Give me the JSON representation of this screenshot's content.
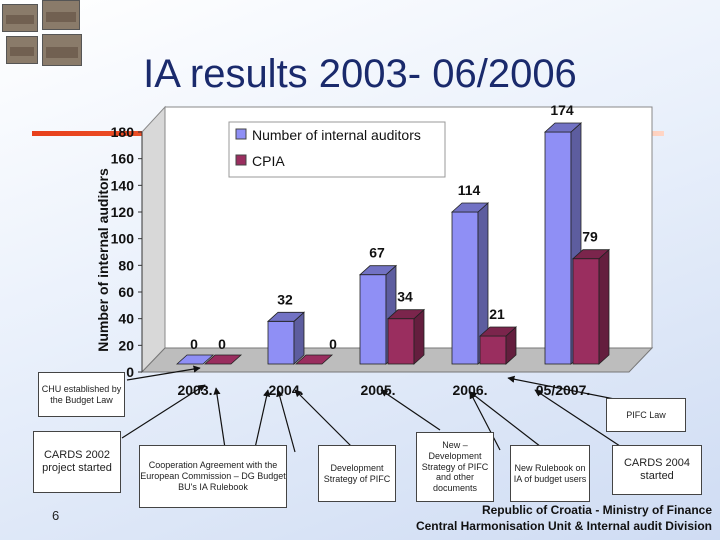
{
  "title": "IA results 2003- 06/2006",
  "chart_data": {
    "type": "bar",
    "categories": [
      "2003.",
      "2004.",
      "2005.",
      "2006.",
      "05/2007."
    ],
    "series": [
      {
        "name": "Number of internal auditors",
        "values": [
          0,
          32,
          67,
          114,
          174
        ],
        "color": "#8f8ff5"
      },
      {
        "name": "CPIA",
        "values": [
          0,
          0,
          34,
          21,
          79
        ],
        "color": "#9a2e5f"
      }
    ],
    "value_labels": {
      "Number of internal auditors": [
        "0",
        "32",
        "67",
        "114",
        "174"
      ],
      "CPIA": [
        "0",
        "0",
        "34",
        "21",
        "79"
      ]
    },
    "ylabel": "Number of internal auditors",
    "ylim": [
      0,
      180
    ],
    "yticks": [
      0,
      20,
      40,
      60,
      80,
      100,
      120,
      140,
      160,
      180
    ],
    "grid": false,
    "legend_position": "top-left",
    "projection": "3d"
  },
  "annotations": {
    "chu": "CHU established by the Budget Law",
    "cards2002": "CARDS 2002 project started",
    "cooperation": "Cooperation Agreement with the European Commission – DG Budget BU's IA Rulebook",
    "development": "Development Strategy of PIFC",
    "new_strategy": "New – Development Strategy of PIFC and other documents",
    "new_rulebook": "New Rulebook on IA of budget users",
    "cards2004": "CARDS 2004 started",
    "pifc_law": "PIFC Law"
  },
  "page_number": "6",
  "footer": {
    "line1": "Republic of Croatia - Ministry of Finance",
    "line2": "Central Harmonisation Unit & Internal audit Division"
  }
}
